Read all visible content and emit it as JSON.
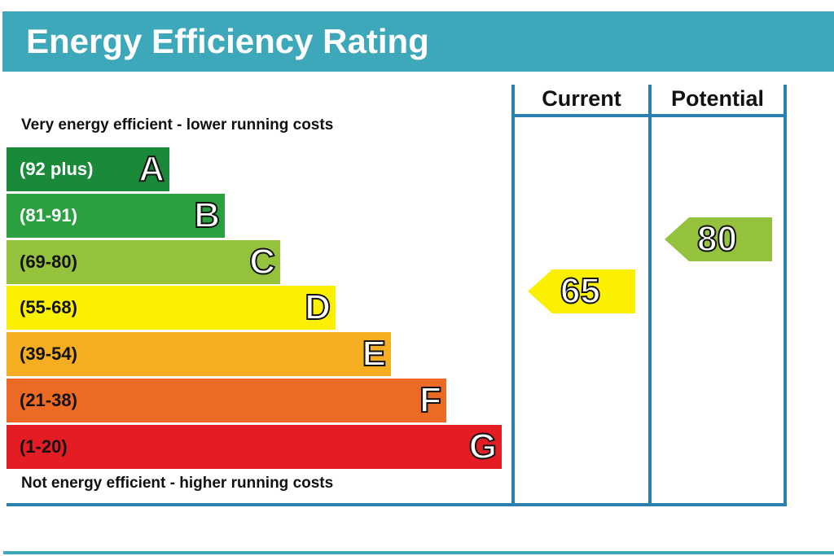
{
  "title": "Energy Efficiency Rating",
  "top_caption": "Very energy efficient - lower running costs",
  "bottom_caption": "Not energy efficient - higher running costs",
  "columns": {
    "current": "Current",
    "potential": "Potential"
  },
  "chart_data": {
    "type": "bar",
    "title": "Energy Efficiency Rating",
    "bands": [
      {
        "letter": "A",
        "range": "(92 plus)",
        "color": "#1a8a3a",
        "text_color": "#ffffff"
      },
      {
        "letter": "B",
        "range": "(81-91)",
        "color": "#2aa040",
        "text_color": "#ffffff"
      },
      {
        "letter": "C",
        "range": "(69-80)",
        "color": "#95c23d",
        "text_color": "#111111"
      },
      {
        "letter": "D",
        "range": "(55-68)",
        "color": "#fbf000",
        "text_color": "#111111"
      },
      {
        "letter": "E",
        "range": "(39-54)",
        "color": "#f5ad22",
        "text_color": "#111111"
      },
      {
        "letter": "F",
        "range": "(21-38)",
        "color": "#ec6a24",
        "text_color": "#111111"
      },
      {
        "letter": "G",
        "range": "(1-20)",
        "color": "#e31d23",
        "text_color": "#111111"
      }
    ],
    "current": {
      "value": 65,
      "band": "D",
      "color": "#fbf000"
    },
    "potential": {
      "value": 80,
      "band": "C",
      "color": "#95c23d"
    }
  }
}
